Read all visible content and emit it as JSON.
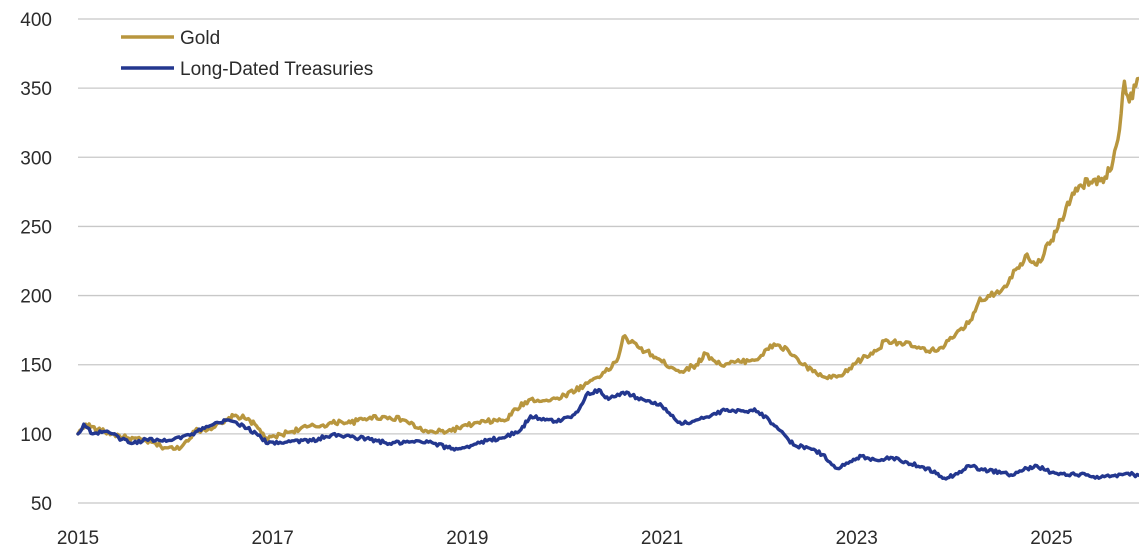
{
  "chart_data": {
    "type": "line",
    "title": "",
    "xlabel": "",
    "ylabel": "",
    "xlim": [
      2015.0,
      2025.9
    ],
    "ylim": [
      50,
      400
    ],
    "grid": "horizontal",
    "legend_position": "top-left",
    "x_ticks": [
      2015,
      2017,
      2019,
      2021,
      2023,
      2025
    ],
    "x_tick_labels": [
      "2015",
      "2017",
      "2019",
      "2021",
      "2023",
      "2025"
    ],
    "y_ticks": [
      50,
      100,
      150,
      200,
      250,
      300,
      350,
      400
    ],
    "y_tick_labels": [
      "50",
      "100",
      "150",
      "200",
      "250",
      "300",
      "350",
      "400"
    ],
    "series": [
      {
        "name": "Gold",
        "color": "#B8963E",
        "points": [
          [
            2015.0,
            100
          ],
          [
            2015.08,
            107
          ],
          [
            2015.2,
            103
          ],
          [
            2015.35,
            100
          ],
          [
            2015.5,
            97
          ],
          [
            2015.7,
            95
          ],
          [
            2015.85,
            91
          ],
          [
            2016.0,
            89
          ],
          [
            2016.08,
            92
          ],
          [
            2016.2,
            102
          ],
          [
            2016.35,
            104
          ],
          [
            2016.5,
            108
          ],
          [
            2016.6,
            113
          ],
          [
            2016.75,
            111
          ],
          [
            2016.85,
            104
          ],
          [
            2016.95,
            96
          ],
          [
            2017.15,
            101
          ],
          [
            2017.35,
            105
          ],
          [
            2017.5,
            106
          ],
          [
            2017.7,
            109
          ],
          [
            2017.8,
            108
          ],
          [
            2018.0,
            112
          ],
          [
            2018.2,
            112
          ],
          [
            2018.35,
            110
          ],
          [
            2018.5,
            104
          ],
          [
            2018.6,
            101
          ],
          [
            2018.8,
            102
          ],
          [
            2019.0,
            106
          ],
          [
            2019.2,
            109
          ],
          [
            2019.4,
            110
          ],
          [
            2019.5,
            118
          ],
          [
            2019.65,
            125
          ],
          [
            2019.85,
            124
          ],
          [
            2020.0,
            128
          ],
          [
            2020.2,
            135
          ],
          [
            2020.3,
            140
          ],
          [
            2020.45,
            146
          ],
          [
            2020.55,
            155
          ],
          [
            2020.6,
            170
          ],
          [
            2020.75,
            163
          ],
          [
            2020.9,
            157
          ],
          [
            2021.0,
            152
          ],
          [
            2021.2,
            145
          ],
          [
            2021.35,
            150
          ],
          [
            2021.45,
            158
          ],
          [
            2021.6,
            150
          ],
          [
            2021.8,
            152
          ],
          [
            2022.0,
            155
          ],
          [
            2022.15,
            165
          ],
          [
            2022.3,
            160
          ],
          [
            2022.45,
            150
          ],
          [
            2022.55,
            145
          ],
          [
            2022.7,
            140
          ],
          [
            2022.85,
            142
          ],
          [
            2023.0,
            152
          ],
          [
            2023.2,
            160
          ],
          [
            2023.3,
            168
          ],
          [
            2023.45,
            166
          ],
          [
            2023.6,
            163
          ],
          [
            2023.75,
            159
          ],
          [
            2023.85,
            162
          ],
          [
            2024.0,
            170
          ],
          [
            2024.15,
            180
          ],
          [
            2024.25,
            195
          ],
          [
            2024.35,
            200
          ],
          [
            2024.5,
            205
          ],
          [
            2024.65,
            220
          ],
          [
            2024.75,
            230
          ],
          [
            2024.85,
            222
          ],
          [
            2025.0,
            240
          ],
          [
            2025.1,
            255
          ],
          [
            2025.2,
            270
          ],
          [
            2025.3,
            280
          ],
          [
            2025.4,
            282
          ],
          [
            2025.5,
            283
          ],
          [
            2025.6,
            290
          ],
          [
            2025.7,
            320
          ],
          [
            2025.75,
            355
          ],
          [
            2025.8,
            340
          ],
          [
            2025.9,
            357
          ]
        ]
      },
      {
        "name": "Long-Dated Treasuries",
        "color": "#23378F",
        "points": [
          [
            2015.0,
            100
          ],
          [
            2015.06,
            107
          ],
          [
            2015.15,
            100
          ],
          [
            2015.3,
            102
          ],
          [
            2015.45,
            96
          ],
          [
            2015.55,
            93
          ],
          [
            2015.7,
            96
          ],
          [
            2015.85,
            95
          ],
          [
            2016.0,
            97
          ],
          [
            2016.15,
            99
          ],
          [
            2016.3,
            104
          ],
          [
            2016.45,
            108
          ],
          [
            2016.55,
            110
          ],
          [
            2016.7,
            106
          ],
          [
            2016.85,
            99
          ],
          [
            2016.95,
            93
          ],
          [
            2017.2,
            95
          ],
          [
            2017.4,
            95
          ],
          [
            2017.6,
            99
          ],
          [
            2017.8,
            98
          ],
          [
            2018.0,
            96
          ],
          [
            2018.2,
            93
          ],
          [
            2018.4,
            94
          ],
          [
            2018.6,
            94
          ],
          [
            2018.8,
            90
          ],
          [
            2018.9,
            89
          ],
          [
            2019.0,
            91
          ],
          [
            2019.2,
            95
          ],
          [
            2019.4,
            98
          ],
          [
            2019.55,
            103
          ],
          [
            2019.65,
            113
          ],
          [
            2019.8,
            110
          ],
          [
            2019.9,
            109
          ],
          [
            2020.05,
            112
          ],
          [
            2020.15,
            118
          ],
          [
            2020.22,
            128
          ],
          [
            2020.35,
            132
          ],
          [
            2020.45,
            125
          ],
          [
            2020.6,
            130
          ],
          [
            2020.8,
            125
          ],
          [
            2021.0,
            120
          ],
          [
            2021.2,
            107
          ],
          [
            2021.35,
            110
          ],
          [
            2021.5,
            113
          ],
          [
            2021.65,
            117
          ],
          [
            2021.85,
            116
          ],
          [
            2021.95,
            118
          ],
          [
            2022.1,
            110
          ],
          [
            2022.25,
            100
          ],
          [
            2022.35,
            92
          ],
          [
            2022.5,
            90
          ],
          [
            2022.65,
            85
          ],
          [
            2022.8,
            75
          ],
          [
            2022.95,
            80
          ],
          [
            2023.05,
            84
          ],
          [
            2023.2,
            81
          ],
          [
            2023.35,
            83
          ],
          [
            2023.5,
            80
          ],
          [
            2023.65,
            76
          ],
          [
            2023.8,
            73
          ],
          [
            2023.9,
            68
          ],
          [
            2024.0,
            70
          ],
          [
            2024.15,
            77
          ],
          [
            2024.3,
            74
          ],
          [
            2024.5,
            72
          ],
          [
            2024.6,
            70
          ],
          [
            2024.75,
            75
          ],
          [
            2024.85,
            77
          ],
          [
            2025.0,
            72
          ],
          [
            2025.15,
            70
          ],
          [
            2025.3,
            71
          ],
          [
            2025.45,
            68
          ],
          [
            2025.6,
            69
          ],
          [
            2025.75,
            71
          ],
          [
            2025.9,
            70
          ]
        ]
      }
    ]
  }
}
